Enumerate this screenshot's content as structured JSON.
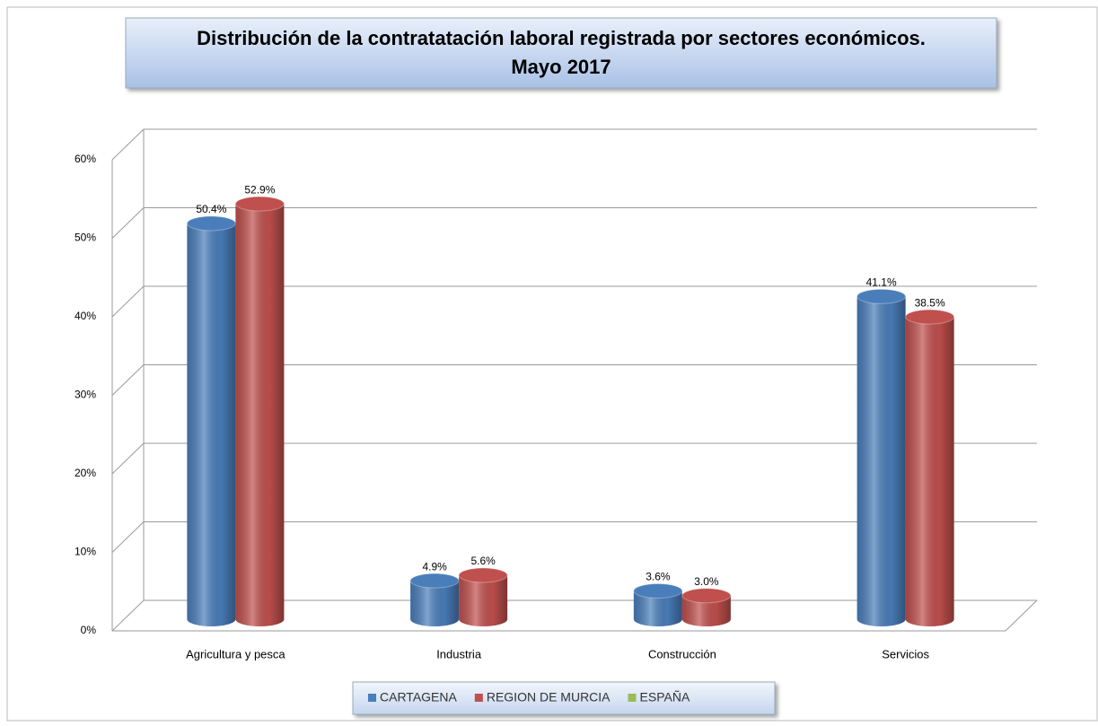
{
  "chart_data": {
    "type": "bar3d",
    "title": "Distribución de la contratatación laboral registrada por sectores económicos.",
    "subtitle": "Mayo 2017",
    "categories": [
      "Agricultura y pesca",
      "Industria",
      "Construcción",
      "Servicios"
    ],
    "series": [
      {
        "name": "CARTAGENA",
        "color": "#4a7ebb",
        "values": [
          50.4,
          4.9,
          3.6,
          41.1
        ],
        "value_labels": [
          "50.4%",
          "4.9%",
          "3.6%",
          "41.1%"
        ]
      },
      {
        "name": "REGION DE MURCIA",
        "color": "#c0504d",
        "values": [
          52.9,
          5.6,
          3.0,
          38.5
        ],
        "value_labels": [
          "52.9%",
          "5.6%",
          "3.0%",
          "38.5%"
        ]
      },
      {
        "name": "ESPAÑA",
        "color": "#9bbb59",
        "values": [
          null,
          null,
          null,
          null
        ]
      }
    ],
    "ylim": [
      0,
      60
    ],
    "yticks": [
      {
        "value": 0,
        "label": "0%"
      },
      {
        "value": 10,
        "label": "10%"
      },
      {
        "value": 20,
        "label": "20%"
      },
      {
        "value": 30,
        "label": "30%"
      },
      {
        "value": 40,
        "label": "40%"
      },
      {
        "value": 50,
        "label": "50%"
      },
      {
        "value": 60,
        "label": "60%"
      }
    ],
    "grid": true,
    "legend": "bottom"
  }
}
